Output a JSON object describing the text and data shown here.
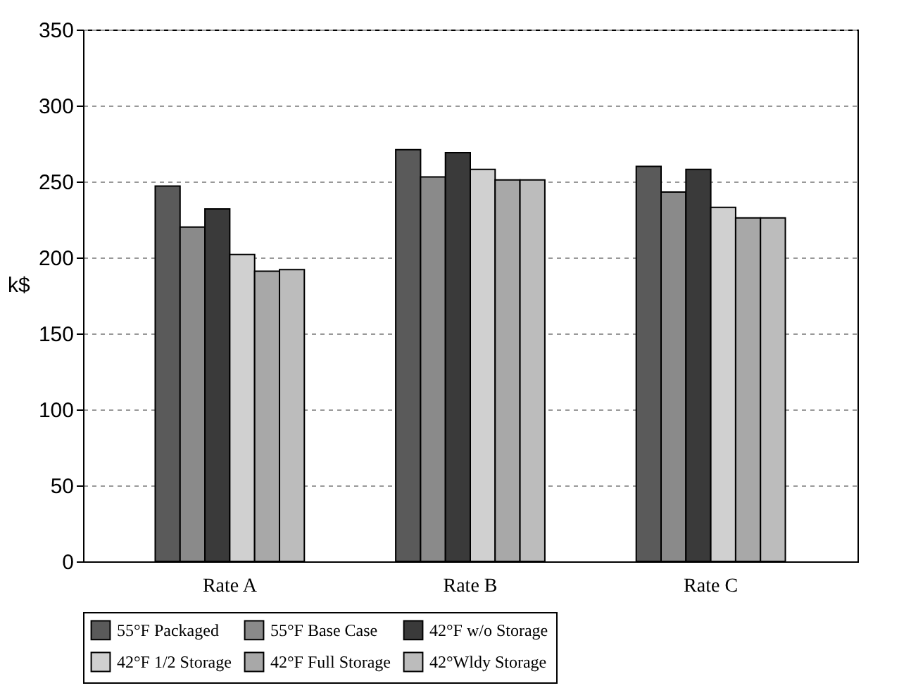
{
  "chart_data": {
    "type": "bar",
    "ylabel": "k$",
    "categories": [
      "Rate A",
      "Rate B",
      "Rate C"
    ],
    "series": [
      {
        "name": "55°F Packaged",
        "color": "#5a5a5a",
        "values": [
          247,
          271,
          260
        ]
      },
      {
        "name": "55°F Base Case",
        "color": "#8a8a8a",
        "values": [
          220,
          253,
          243
        ]
      },
      {
        "name": "42°F w/o Storage",
        "color": "#3a3a3a",
        "values": [
          232,
          269,
          258
        ]
      },
      {
        "name": "42°F 1/2 Storage",
        "color": "#d0d0d0",
        "values": [
          202,
          258,
          233
        ]
      },
      {
        "name": "42°F Full Storage",
        "color": "#a8a8a8",
        "values": [
          191,
          251,
          226
        ]
      },
      {
        "name": "42°Wldy Storage",
        "color": "#bcbcbc",
        "values": [
          192,
          251,
          226
        ]
      }
    ],
    "ylim": [
      0,
      350
    ],
    "yticks": [
      0,
      50,
      100,
      150,
      200,
      250,
      300,
      350
    ],
    "grid": "y",
    "legend": "bottom"
  }
}
